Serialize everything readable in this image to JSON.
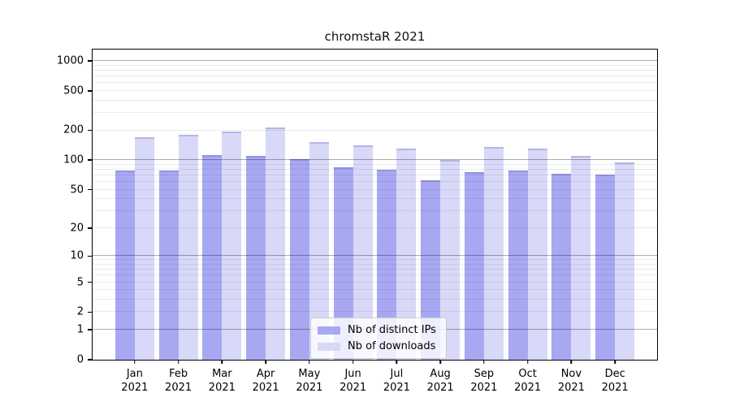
{
  "chart_data": {
    "type": "bar",
    "title": "chromstaR 2021",
    "categories": [
      "Jan 2021",
      "Feb 2021",
      "Mar 2021",
      "Apr 2021",
      "May 2021",
      "Jun 2021",
      "Jul 2021",
      "Aug 2021",
      "Sep 2021",
      "Oct 2021",
      "Nov 2021",
      "Dec 2021"
    ],
    "series": [
      {
        "name": "Nb of distinct IPs",
        "color": "#a8a8f2",
        "values": [
          78,
          78,
          112,
          110,
          102,
          85,
          80,
          62,
          75,
          79,
          72,
          71
        ]
      },
      {
        "name": "Nb of downloads",
        "color": "#d8d8f8",
        "values": [
          170,
          180,
          193,
          213,
          153,
          142,
          130,
          100,
          137,
          131,
          110,
          95
        ]
      }
    ],
    "y_axis": {
      "scale": "log10(value+1)",
      "tick_labels": [
        0,
        1,
        2,
        5,
        10,
        20,
        50,
        100,
        200,
        500,
        1000
      ],
      "major_gridlines": [
        1,
        10,
        100,
        1000
      ],
      "minor_gridlines": [
        2,
        3,
        4,
        5,
        6,
        7,
        8,
        9,
        20,
        30,
        40,
        50,
        60,
        70,
        80,
        90,
        200,
        300,
        400,
        500,
        600,
        700,
        800,
        900
      ],
      "axis_bottom_value": 0,
      "axis_top_value": 1300
    },
    "x_axis": {
      "tick_label_lines": [
        "month",
        "year"
      ]
    },
    "legend": {
      "position": "inside-bottom-center",
      "entries": [
        "Nb of distinct IPs",
        "Nb of downloads"
      ]
    },
    "grid": true
  },
  "colors": {
    "background": "#ffffff",
    "bar_distinct_ips": "#a8a8f2",
    "bar_downloads": "#d8d8f8",
    "axis": "#000000",
    "major_gridline": "rgba(0,0,0,0.32)",
    "minor_gridline": "rgba(0,0,0,0.08)",
    "legend_border": "#cccccc",
    "legend_background": "rgba(255,255,255,0.8)"
  }
}
